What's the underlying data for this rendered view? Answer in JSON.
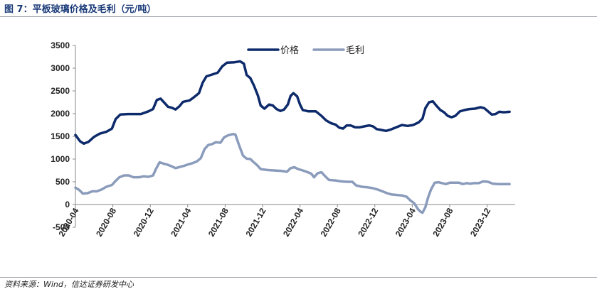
{
  "figure_title": "图 7：平板玻璃价格及毛利（元/吨）",
  "source": "资料来源：Wind，信达证券研发中心",
  "chart_data": {
    "type": "line",
    "title": "平板玻璃价格及毛利（元/吨）",
    "xlabel": "",
    "ylabel": "",
    "ylim": [
      -500,
      3500
    ],
    "yticks": [
      -500,
      0,
      500,
      1000,
      1500,
      2000,
      2500,
      3000,
      3500
    ],
    "x_range_months": [
      0,
      47
    ],
    "x_ticks": [
      {
        "label": "2020-04",
        "m": 0
      },
      {
        "label": "2020-08",
        "m": 4
      },
      {
        "label": "2020-12",
        "m": 8
      },
      {
        "label": "2021-04",
        "m": 12
      },
      {
        "label": "2021-08",
        "m": 16
      },
      {
        "label": "2021-12",
        "m": 20
      },
      {
        "label": "2022-04",
        "m": 24
      },
      {
        "label": "2022-08",
        "m": 28
      },
      {
        "label": "2022-12",
        "m": 32
      },
      {
        "label": "2023-04",
        "m": 36
      },
      {
        "label": "2023-08",
        "m": 40
      },
      {
        "label": "2023-12",
        "m": 44
      }
    ],
    "legend_position": "top-center",
    "series": [
      {
        "name": "价格",
        "color": "#0d2a6b",
        "points": [
          [
            0,
            1530
          ],
          [
            0.5,
            1390
          ],
          [
            0.9,
            1340
          ],
          [
            1.4,
            1380
          ],
          [
            2,
            1490
          ],
          [
            2.6,
            1560
          ],
          [
            3.3,
            1600
          ],
          [
            3.9,
            1670
          ],
          [
            4.3,
            1880
          ],
          [
            4.8,
            1980
          ],
          [
            5.6,
            1990
          ],
          [
            7,
            1990
          ],
          [
            7.8,
            2050
          ],
          [
            8.3,
            2100
          ],
          [
            8.7,
            2300
          ],
          [
            9.1,
            2330
          ],
          [
            9.5,
            2240
          ],
          [
            9.9,
            2150
          ],
          [
            10.3,
            2130
          ],
          [
            10.7,
            2090
          ],
          [
            11.1,
            2160
          ],
          [
            11.5,
            2260
          ],
          [
            12.2,
            2290
          ],
          [
            12.6,
            2350
          ],
          [
            13.2,
            2450
          ],
          [
            13.6,
            2680
          ],
          [
            14,
            2820
          ],
          [
            14.6,
            2860
          ],
          [
            15.2,
            2900
          ],
          [
            15.7,
            3040
          ],
          [
            16.2,
            3120
          ],
          [
            17,
            3130
          ],
          [
            17.6,
            3150
          ],
          [
            18,
            3100
          ],
          [
            18.3,
            2850
          ],
          [
            18.7,
            2780
          ],
          [
            19.1,
            2610
          ],
          [
            19.5,
            2400
          ],
          [
            19.8,
            2180
          ],
          [
            20.2,
            2110
          ],
          [
            20.7,
            2200
          ],
          [
            21.1,
            2180
          ],
          [
            21.5,
            2100
          ],
          [
            21.9,
            2060
          ],
          [
            22.3,
            2090
          ],
          [
            22.7,
            2200
          ],
          [
            23,
            2390
          ],
          [
            23.3,
            2450
          ],
          [
            23.7,
            2380
          ],
          [
            24,
            2200
          ],
          [
            24.3,
            2080
          ],
          [
            24.9,
            2050
          ],
          [
            25.7,
            2050
          ],
          [
            26.3,
            1950
          ],
          [
            26.8,
            1850
          ],
          [
            27.3,
            1790
          ],
          [
            27.8,
            1760
          ],
          [
            28.2,
            1690
          ],
          [
            28.6,
            1670
          ],
          [
            29,
            1740
          ],
          [
            29.4,
            1740
          ],
          [
            29.9,
            1700
          ],
          [
            30.4,
            1700
          ],
          [
            30.9,
            1720
          ],
          [
            31.4,
            1740
          ],
          [
            31.8,
            1720
          ],
          [
            32.2,
            1660
          ],
          [
            32.7,
            1640
          ],
          [
            33.2,
            1620
          ],
          [
            33.7,
            1650
          ],
          [
            34.3,
            1700
          ],
          [
            34.9,
            1750
          ],
          [
            35.5,
            1730
          ],
          [
            36.1,
            1750
          ],
          [
            36.7,
            1810
          ],
          [
            37.1,
            1890
          ],
          [
            37.4,
            2120
          ],
          [
            37.8,
            2250
          ],
          [
            38.2,
            2270
          ],
          [
            38.6,
            2170
          ],
          [
            39,
            2080
          ],
          [
            39.4,
            2030
          ],
          [
            39.8,
            1950
          ],
          [
            40.2,
            1920
          ],
          [
            40.6,
            1950
          ],
          [
            41.1,
            2050
          ],
          [
            41.6,
            2080
          ],
          [
            42.1,
            2100
          ],
          [
            42.7,
            2110
          ],
          [
            43.3,
            2140
          ],
          [
            43.7,
            2120
          ],
          [
            44.1,
            2050
          ],
          [
            44.5,
            1980
          ],
          [
            44.9,
            1990
          ],
          [
            45.3,
            2040
          ],
          [
            45.8,
            2030
          ],
          [
            46.4,
            2040
          ]
        ]
      },
      {
        "name": "毛利",
        "color": "#8a9bbb",
        "points": [
          [
            0,
            370
          ],
          [
            0.4,
            320
          ],
          [
            0.8,
            240
          ],
          [
            1.3,
            250
          ],
          [
            1.8,
            290
          ],
          [
            2.3,
            290
          ],
          [
            2.8,
            330
          ],
          [
            3.3,
            390
          ],
          [
            3.9,
            430
          ],
          [
            4.3,
            520
          ],
          [
            4.7,
            600
          ],
          [
            5.2,
            640
          ],
          [
            5.7,
            640
          ],
          [
            6.2,
            600
          ],
          [
            6.8,
            600
          ],
          [
            7.3,
            620
          ],
          [
            7.8,
            610
          ],
          [
            8.3,
            640
          ],
          [
            8.6,
            780
          ],
          [
            9,
            930
          ],
          [
            9.4,
            900
          ],
          [
            9.8,
            880
          ],
          [
            10.3,
            840
          ],
          [
            10.7,
            800
          ],
          [
            11.2,
            830
          ],
          [
            11.6,
            850
          ],
          [
            12,
            880
          ],
          [
            12.5,
            910
          ],
          [
            13,
            950
          ],
          [
            13.4,
            1020
          ],
          [
            13.8,
            1220
          ],
          [
            14.2,
            1310
          ],
          [
            14.6,
            1330
          ],
          [
            15,
            1370
          ],
          [
            15.5,
            1360
          ],
          [
            15.9,
            1480
          ],
          [
            16.3,
            1520
          ],
          [
            16.8,
            1550
          ],
          [
            17.1,
            1540
          ],
          [
            17.5,
            1300
          ],
          [
            17.9,
            1080
          ],
          [
            18.3,
            1010
          ],
          [
            18.7,
            1000
          ],
          [
            19,
            940
          ],
          [
            19.4,
            870
          ],
          [
            19.8,
            780
          ],
          [
            20.5,
            760
          ],
          [
            21.2,
            750
          ],
          [
            22,
            740
          ],
          [
            22.6,
            720
          ],
          [
            23,
            800
          ],
          [
            23.4,
            820
          ],
          [
            23.8,
            780
          ],
          [
            24.3,
            750
          ],
          [
            24.7,
            720
          ],
          [
            25.2,
            680
          ],
          [
            25.5,
            600
          ],
          [
            25.9,
            690
          ],
          [
            26.3,
            710
          ],
          [
            26.7,
            620
          ],
          [
            27.1,
            540
          ],
          [
            27.8,
            530
          ],
          [
            28.4,
            510
          ],
          [
            29,
            500
          ],
          [
            29.6,
            500
          ],
          [
            30,
            420
          ],
          [
            30.6,
            390
          ],
          [
            31.2,
            380
          ],
          [
            31.8,
            360
          ],
          [
            32.3,
            330
          ],
          [
            32.8,
            290
          ],
          [
            33.3,
            250
          ],
          [
            33.8,
            220
          ],
          [
            34.4,
            210
          ],
          [
            34.9,
            200
          ],
          [
            35.4,
            170
          ],
          [
            35.8,
            90
          ],
          [
            36.2,
            30
          ],
          [
            36.6,
            -100
          ],
          [
            36.9,
            -160
          ],
          [
            37.1,
            -180
          ],
          [
            37.4,
            -60
          ],
          [
            37.7,
            160
          ],
          [
            38,
            330
          ],
          [
            38.4,
            480
          ],
          [
            38.8,
            490
          ],
          [
            39.2,
            470
          ],
          [
            39.6,
            450
          ],
          [
            40,
            480
          ],
          [
            40.5,
            480
          ],
          [
            41,
            480
          ],
          [
            41.4,
            450
          ],
          [
            41.8,
            470
          ],
          [
            42.2,
            460
          ],
          [
            42.6,
            470
          ],
          [
            43.1,
            470
          ],
          [
            43.6,
            510
          ],
          [
            44.1,
            500
          ],
          [
            44.6,
            460
          ],
          [
            45.2,
            450
          ],
          [
            45.8,
            450
          ],
          [
            46.4,
            450
          ]
        ]
      }
    ]
  }
}
